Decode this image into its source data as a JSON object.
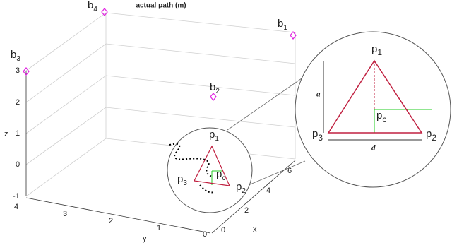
{
  "title": "actual path (m)",
  "x_axis": {
    "label": "x",
    "ticks": [
      "0",
      "2",
      "4",
      "6"
    ]
  },
  "y_axis": {
    "label": "y",
    "ticks": [
      "0",
      "1",
      "2",
      "3",
      "4"
    ]
  },
  "z_axis": {
    "label": "z",
    "ticks": [
      "-1",
      "0",
      "1",
      "2",
      "3"
    ]
  },
  "beacons": [
    {
      "name": "b",
      "sub": "4"
    },
    {
      "name": "b",
      "sub": "1"
    },
    {
      "name": "b",
      "sub": "2"
    },
    {
      "name": "b",
      "sub": "3"
    }
  ],
  "points": {
    "p1": {
      "name": "p",
      "sub": "1"
    },
    "p2": {
      "name": "p",
      "sub": "2"
    },
    "p3": {
      "name": "p",
      "sub": "3"
    },
    "pc": {
      "name": "p",
      "sub": "c"
    }
  },
  "dimensions": {
    "a": "a",
    "d": "d"
  }
}
